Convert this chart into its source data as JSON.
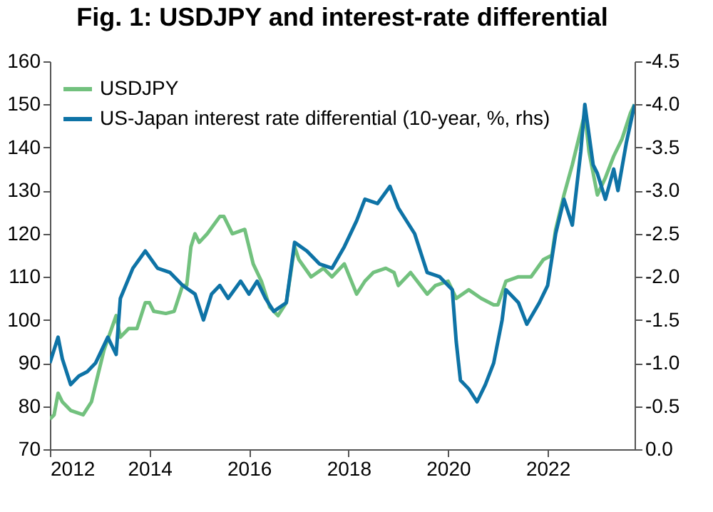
{
  "chart_data": {
    "type": "line",
    "title": "Fig. 1: USDJPY and interest-rate differential",
    "xlim": [
      "2012-01",
      "2023-10"
    ],
    "xticks": [
      "2012",
      "2014",
      "2016",
      "2018",
      "2020",
      "2022"
    ],
    "ylim": [
      70,
      160
    ],
    "yticks": [
      70,
      80,
      90,
      100,
      110,
      120,
      130,
      140,
      150,
      160
    ],
    "y2lim": [
      0,
      -4.5
    ],
    "y2ticks": [
      {
        "value": 0,
        "label": "0.0"
      },
      -0.5,
      {
        "value": -1,
        "label": "-1.0"
      },
      -1.5,
      {
        "value": -2,
        "label": "-2.0"
      },
      -2.5,
      {
        "value": -3,
        "label": "-3.0"
      },
      -3.5,
      {
        "value": -4,
        "label": "-4.0"
      },
      -4.5
    ],
    "grid": false,
    "legend": "top left",
    "line_style": "solid",
    "series": [
      {
        "name": "USDJPY",
        "color": "#72c17e",
        "x": [
          "2012-01",
          "2012-02",
          "2012-03",
          "2012-04",
          "2012-06",
          "2012-09",
          "2012-11",
          "2012-12",
          "2013-02",
          "2013-05",
          "2013-06",
          "2013-08",
          "2013-10",
          "2013-12",
          "2014-01",
          "2014-02",
          "2014-05",
          "2014-07",
          "2014-09",
          "2014-10",
          "2014-11",
          "2014-12",
          "2015-01",
          "2015-03",
          "2015-06",
          "2015-07",
          "2015-08",
          "2015-09",
          "2015-12",
          "2016-02",
          "2016-04",
          "2016-06",
          "2016-08",
          "2016-10",
          "2016-12",
          "2017-01",
          "2017-04",
          "2017-07",
          "2017-09",
          "2017-12",
          "2018-03",
          "2018-05",
          "2018-07",
          "2018-10",
          "2018-12",
          "2019-01",
          "2019-04",
          "2019-08",
          "2019-10",
          "2020-01",
          "2020-03",
          "2020-06",
          "2020-09",
          "2020-12",
          "2021-01",
          "2021-03",
          "2021-06",
          "2021-09",
          "2021-12",
          "2022-02",
          "2022-03",
          "2022-05",
          "2022-07",
          "2022-09",
          "2022-10",
          "2022-11",
          "2023-01",
          "2023-03",
          "2023-05",
          "2023-07",
          "2023-09",
          "2023-10"
        ],
        "values": [
          77,
          78,
          83,
          81,
          79,
          78,
          81,
          85,
          93,
          101,
          96,
          98,
          98,
          104,
          104,
          102,
          101.5,
          102,
          108,
          108,
          117,
          120,
          118,
          120,
          124,
          124,
          122,
          120,
          121,
          113,
          109,
          103,
          101,
          104,
          117,
          114,
          110,
          112,
          110,
          113,
          106,
          109,
          111,
          112,
          111,
          108,
          111,
          106,
          108,
          109,
          105,
          107,
          105,
          103.5,
          103.5,
          109,
          110,
          110,
          114,
          115,
          121,
          129,
          136,
          144,
          148,
          139,
          129,
          133,
          138,
          142,
          148,
          150
        ]
      },
      {
        "name": "US-Japan interest rate differential (10-year, %, rhs)",
        "color": "#0e73a6",
        "axis": "y2",
        "x": [
          "2012-01",
          "2012-03",
          "2012-04",
          "2012-06",
          "2012-08",
          "2012-10",
          "2012-12",
          "2013-03",
          "2013-05",
          "2013-06",
          "2013-09",
          "2013-12",
          "2014-03",
          "2014-06",
          "2014-09",
          "2014-12",
          "2015-02",
          "2015-04",
          "2015-06",
          "2015-08",
          "2015-11",
          "2016-01",
          "2016-03",
          "2016-05",
          "2016-07",
          "2016-10",
          "2016-12",
          "2017-03",
          "2017-06",
          "2017-09",
          "2017-12",
          "2018-03",
          "2018-05",
          "2018-08",
          "2018-11",
          "2019-01",
          "2019-05",
          "2019-08",
          "2019-11",
          "2020-02",
          "2020-03",
          "2020-04",
          "2020-06",
          "2020-08",
          "2020-10",
          "2020-12",
          "2021-02",
          "2021-03",
          "2021-06",
          "2021-08",
          "2021-11",
          "2022-01",
          "2022-03",
          "2022-05",
          "2022-07",
          "2022-09",
          "2022-10",
          "2022-12",
          "2023-01",
          "2023-03",
          "2023-05",
          "2023-06",
          "2023-08",
          "2023-10"
        ],
        "values": [
          -1.0,
          -1.3,
          -1.05,
          -0.75,
          -0.85,
          -0.9,
          -1.0,
          -1.3,
          -1.1,
          -1.75,
          -2.1,
          -2.3,
          -2.1,
          -2.05,
          -1.9,
          -1.8,
          -1.5,
          -1.8,
          -1.9,
          -1.75,
          -1.95,
          -1.8,
          -1.95,
          -1.75,
          -1.6,
          -1.7,
          -2.4,
          -2.3,
          -2.15,
          -2.1,
          -2.35,
          -2.65,
          -2.9,
          -2.85,
          -3.05,
          -2.8,
          -2.5,
          -2.05,
          -2.0,
          -1.85,
          -1.25,
          -0.8,
          -0.7,
          -0.55,
          -0.75,
          -1.0,
          -1.5,
          -1.85,
          -1.7,
          -1.45,
          -1.7,
          -1.9,
          -2.5,
          -2.9,
          -2.6,
          -3.45,
          -4.0,
          -3.3,
          -3.2,
          -2.9,
          -3.25,
          -3.0,
          -3.55,
          -4.0
        ]
      }
    ]
  }
}
